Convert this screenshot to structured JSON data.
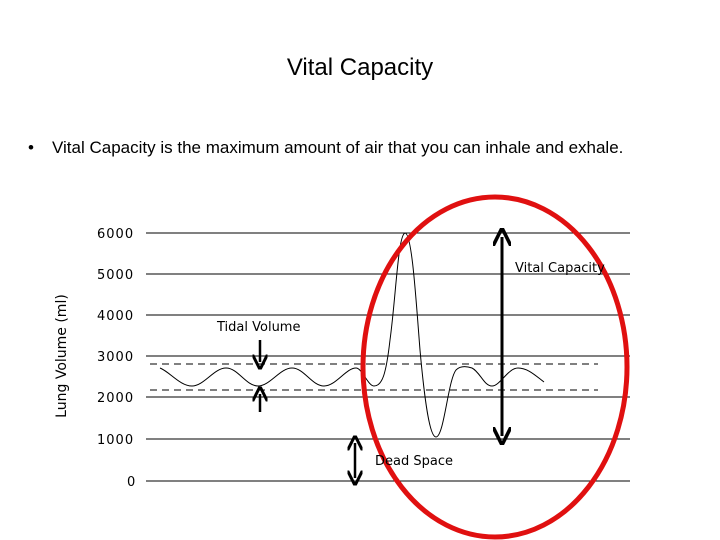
{
  "slide": {
    "title": "Vital Capacity",
    "bullet": "Vital Capacity is the maximum amount of air that you can inhale and exhale.",
    "bullet_symbol": "•"
  },
  "chart": {
    "y_axis_label": "Lung Volume (ml)",
    "y_ticks": [
      "6000",
      "5000",
      "4000",
      "3000",
      "2000",
      "1000",
      "0"
    ],
    "annotations": {
      "vital_capacity": "Vital Capacity",
      "tidal_volume": "Tidal Volume",
      "dead_space": "Dead Space"
    },
    "highlight_color": "#e01010",
    "line_color": "#000000"
  }
}
